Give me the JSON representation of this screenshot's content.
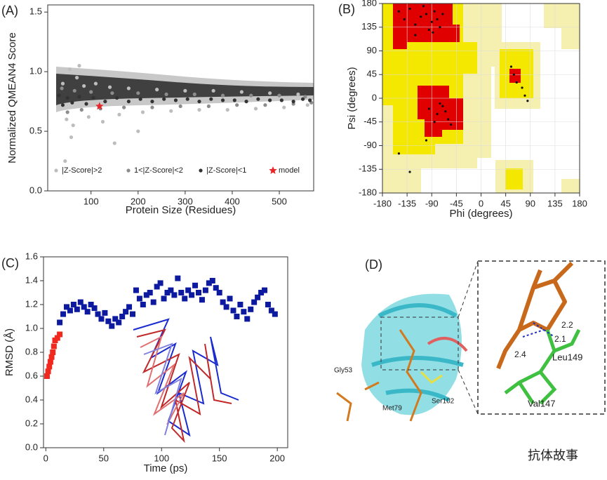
{
  "chart_data": [
    {
      "type": "scatter",
      "label": "(A)",
      "ylabel": "Normalized QMEAN4 Score",
      "xlabel": "Protein  Size (Residues)",
      "xlim": [
        8,
        573
      ],
      "xticks": [
        100,
        200,
        300,
        400,
        500
      ],
      "ylim": [
        0,
        1.56
      ],
      "yticks": [
        {
          "value": 0,
          "label": "0.0"
        },
        0.5,
        {
          "value": 1,
          "label": "1.0"
        },
        1.5
      ],
      "series": [
        {
          "name": "|Z-Score|>2",
          "color": "#bdbdbd",
          "marker": "circle",
          "x": [
            40,
            48,
            55,
            62,
            70,
            85,
            95,
            110,
            125,
            140,
            160,
            180,
            210,
            240,
            270,
            300,
            330,
            360,
            390,
            420,
            450,
            480,
            510,
            540,
            560,
            45,
            58,
            75,
            150,
            200
          ],
          "y": [
            0.9,
            0.6,
            1.02,
            0.55,
            0.95,
            0.88,
            0.62,
            0.9,
            0.58,
            0.87,
            0.64,
            0.86,
            0.66,
            0.85,
            0.67,
            0.84,
            0.68,
            0.84,
            0.68,
            0.83,
            0.69,
            0.82,
            0.7,
            0.81,
            0.72,
            0.25,
            0.45,
            1.05,
            0.4,
            0.5
          ]
        },
        {
          "name": "1<|Z-Score|<2",
          "color": "#8c8c8c",
          "marker": "circle",
          "x": [
            38,
            50,
            65,
            80,
            100,
            120,
            145,
            170,
            200,
            230,
            260,
            290,
            320,
            350,
            380,
            410,
            440,
            470,
            500,
            530,
            555,
            568
          ],
          "y": [
            0.86,
            0.66,
            0.84,
            0.68,
            0.83,
            0.69,
            0.82,
            0.7,
            0.82,
            0.7,
            0.81,
            0.71,
            0.81,
            0.71,
            0.8,
            0.72,
            0.8,
            0.72,
            0.8,
            0.73,
            0.79,
            0.74
          ]
        },
        {
          "name": "|Z-Score|<1",
          "color": "#333333",
          "marker": "circle",
          "x": [
            32,
            40,
            50,
            60,
            75,
            90,
            105,
            130,
            155,
            180,
            205,
            230,
            255,
            280,
            305,
            330,
            355,
            380,
            405,
            430,
            455,
            480,
            505,
            530,
            550,
            565
          ],
          "y": [
            0.8,
            0.72,
            0.78,
            0.74,
            0.79,
            0.73,
            0.78,
            0.75,
            0.78,
            0.75,
            0.77,
            0.75,
            0.77,
            0.76,
            0.77,
            0.75,
            0.77,
            0.76,
            0.76,
            0.75,
            0.77,
            0.76,
            0.76,
            0.75,
            0.77,
            0.76
          ]
        },
        {
          "name": "model",
          "color": "#e8262a",
          "marker": "star",
          "x": [
            118
          ],
          "y": [
            0.71
          ]
        }
      ]
    },
    {
      "type": "scatter",
      "label": "(B)",
      "ylabel": "Psi (degrees)",
      "xlabel": "Phi (degrees)",
      "xlim": [
        -180,
        180
      ],
      "xticks": [
        -180,
        -135,
        -90,
        -45,
        0,
        45,
        90,
        135,
        180
      ],
      "ylim": [
        -180,
        180
      ],
      "yticks": [
        -180,
        -135,
        -90,
        -45,
        0,
        45,
        90,
        135,
        180
      ],
      "series": [
        {
          "color": "#111111",
          "marker": "dot",
          "x": [
            -150,
            -140,
            -130,
            -120,
            -110,
            -100,
            -95,
            -90,
            -85,
            -80,
            -75,
            -70,
            -120,
            -105,
            -88,
            -95,
            -80,
            -70,
            -60,
            -65,
            -75,
            -85,
            -55,
            -100,
            60,
            55,
            65,
            75,
            80,
            85,
            -150,
            -130
          ],
          "y": [
            165,
            150,
            170,
            140,
            155,
            160,
            130,
            145,
            165,
            150,
            135,
            160,
            120,
            175,
            125,
            -20,
            -30,
            -15,
            -40,
            -25,
            -10,
            -45,
            -50,
            -80,
            45,
            60,
            30,
            20,
            5,
            -5,
            -105,
            -140
          ]
        }
      ]
    },
    {
      "type": "scatter",
      "label": "(C)",
      "ylabel": "RMSD (Å)",
      "xlabel": "Time (ps)",
      "xlim": [
        -2,
        209
      ],
      "xticks": [
        0,
        50,
        100,
        150,
        200
      ],
      "ylim": [
        0,
        1.6
      ],
      "yticks": [
        {
          "value": 0,
          "label": "0.0"
        },
        0.2,
        0.4,
        0.6,
        0.8,
        {
          "value": 1,
          "label": "1.0"
        },
        1.2,
        1.4,
        1.6
      ],
      "series": [
        {
          "color": "#f0281e",
          "marker": "square",
          "x": [
            1,
            2,
            3,
            4,
            5,
            6,
            7,
            8,
            10,
            12
          ],
          "y": [
            0.6,
            0.64,
            0.68,
            0.72,
            0.76,
            0.8,
            0.85,
            0.9,
            0.92,
            0.95
          ]
        },
        {
          "color": "#0d1aa0",
          "marker": "square",
          "x": [
            12,
            15,
            18,
            21,
            24,
            27,
            30,
            33,
            36,
            39,
            42,
            45,
            48,
            51,
            54,
            57,
            60,
            63,
            66,
            69,
            72,
            75,
            78,
            81,
            84,
            87,
            90,
            93,
            96,
            99,
            102,
            105,
            108,
            111,
            114,
            117,
            120,
            123,
            126,
            129,
            132,
            135,
            138,
            141,
            144,
            147,
            150,
            153,
            156,
            159,
            162,
            165,
            168,
            171,
            174,
            177,
            180,
            183,
            186,
            189,
            192,
            195,
            198
          ],
          "y": [
            1.05,
            1.12,
            1.18,
            1.15,
            1.2,
            1.16,
            1.22,
            1.18,
            1.14,
            1.2,
            1.17,
            1.12,
            1.08,
            1.13,
            1.06,
            1.02,
            1.08,
            1.05,
            1.1,
            1.14,
            1.18,
            1.12,
            1.32,
            1.25,
            1.2,
            1.28,
            1.3,
            1.22,
            1.35,
            1.38,
            1.25,
            1.3,
            1.32,
            1.28,
            1.42,
            1.3,
            1.25,
            1.32,
            1.28,
            1.36,
            1.3,
            1.24,
            1.32,
            1.38,
            1.4,
            1.34,
            1.3,
            1.22,
            1.18,
            1.25,
            1.15,
            1.1,
            1.2,
            1.14,
            1.08,
            1.16,
            1.22,
            1.26,
            1.3,
            1.32,
            1.2,
            1.15,
            1.12
          ]
        }
      ]
    }
  ],
  "panel_d": {
    "label": "(D)",
    "residues": [
      "Gly53",
      "Met79",
      "Ser102",
      "Leu149",
      "Val147"
    ],
    "distances": [
      "2.2",
      "2.1",
      "2.4"
    ],
    "watermark": "抗体故事"
  }
}
